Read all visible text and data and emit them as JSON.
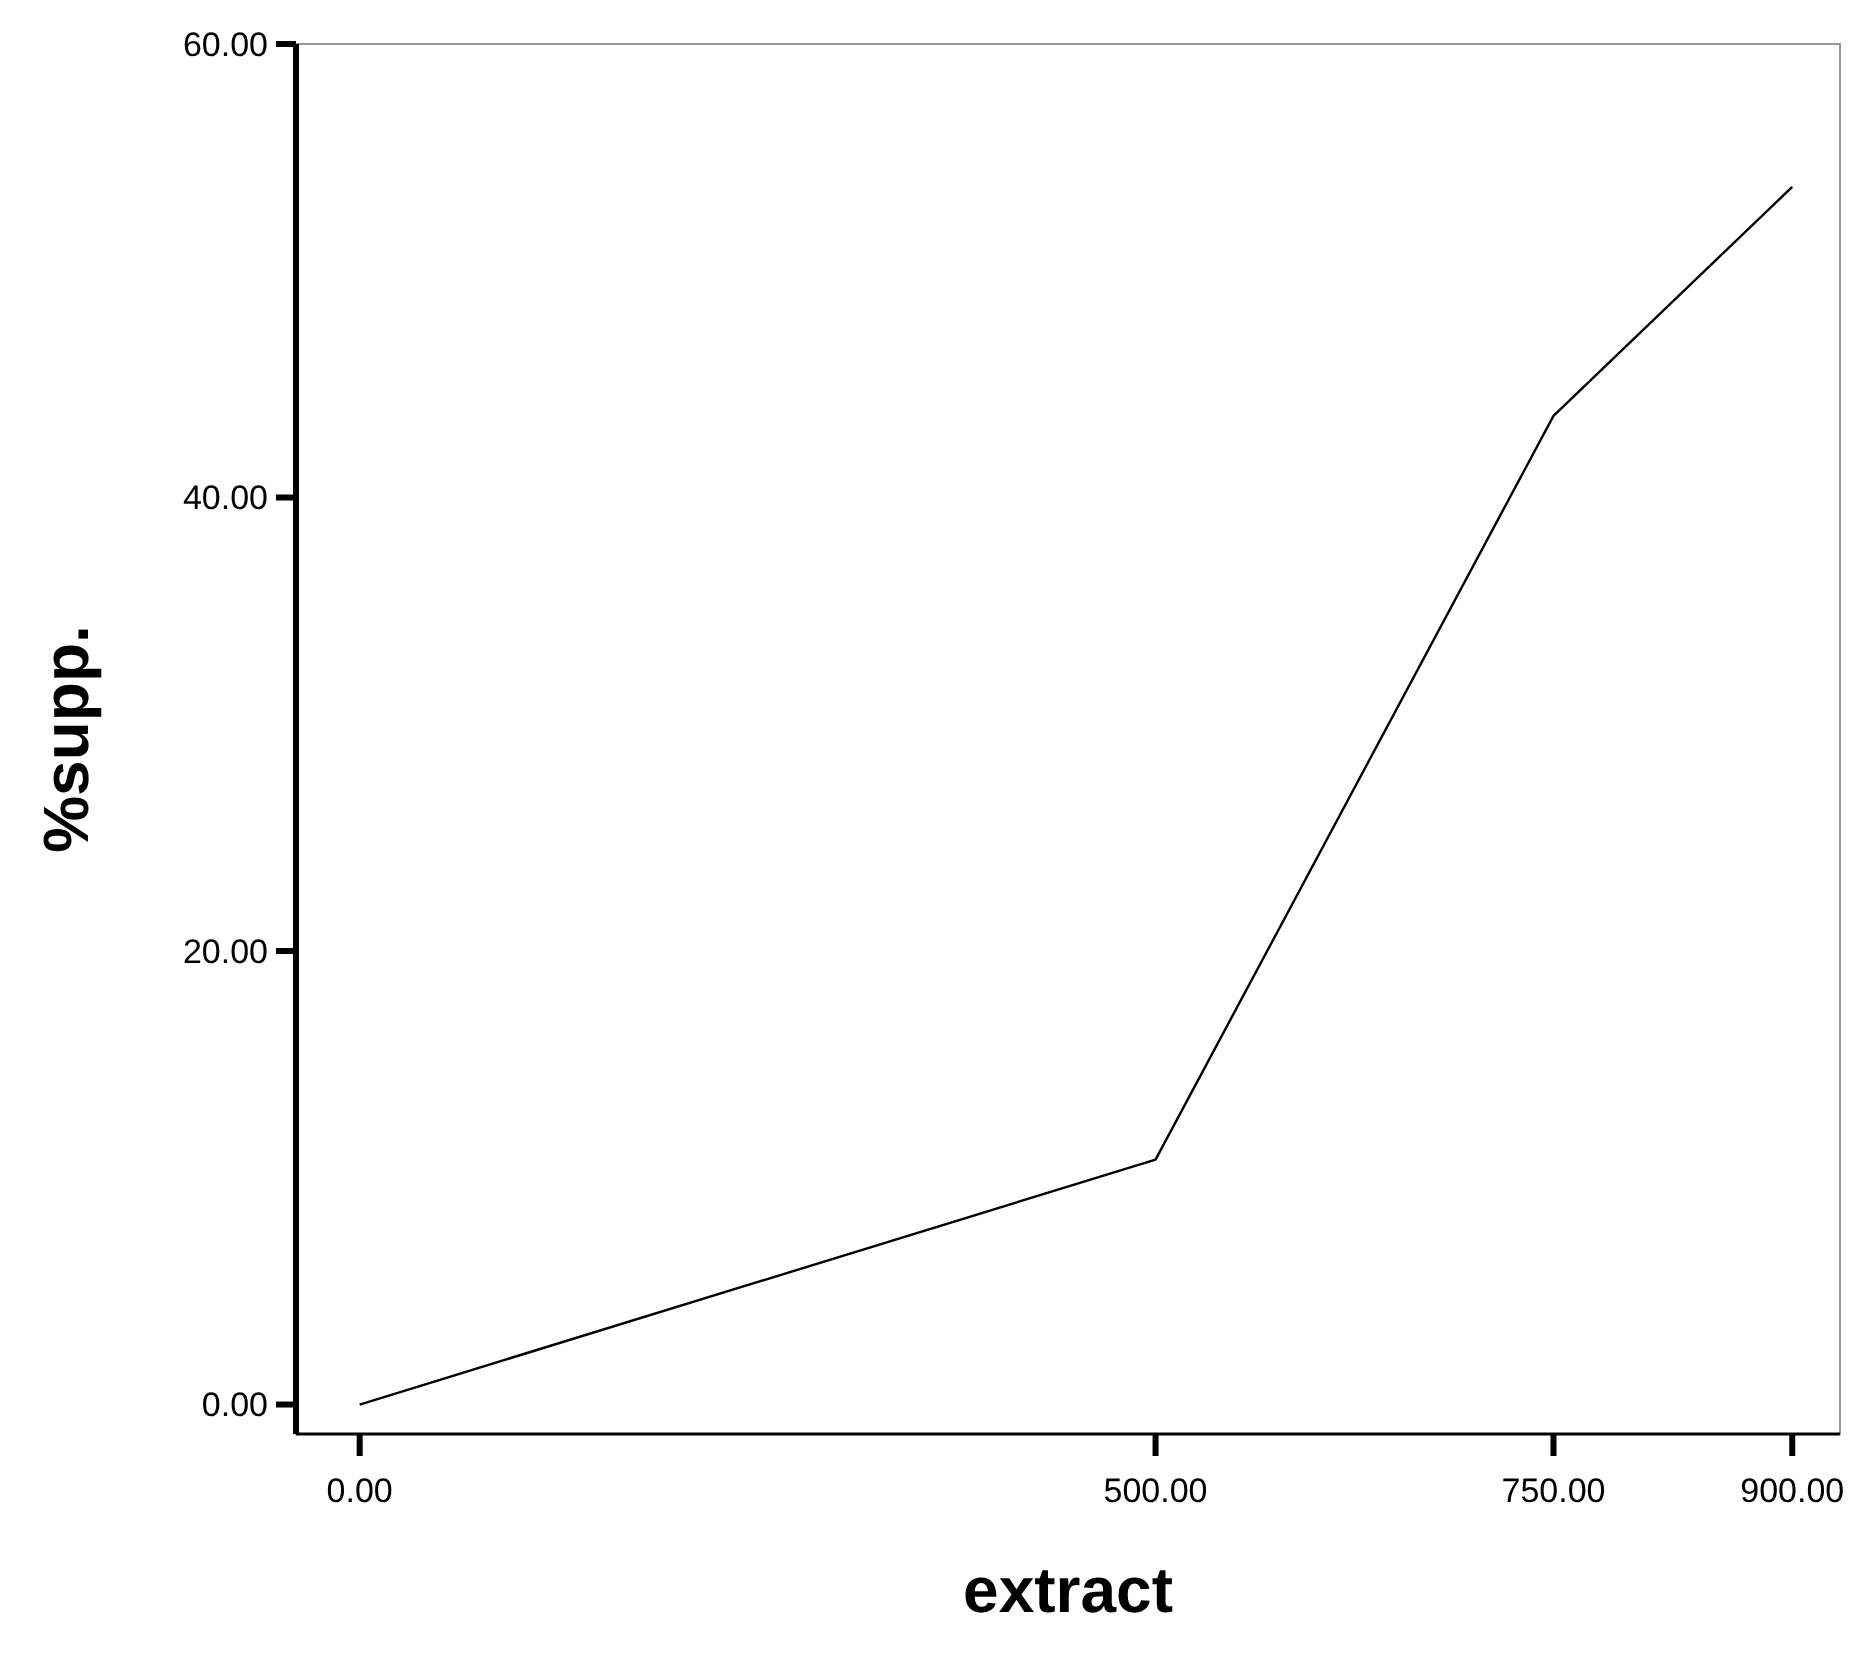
{
  "chart_data": {
    "type": "line",
    "xlabel": "extract",
    "ylabel": "%supp.",
    "x": [
      0,
      500,
      750,
      900
    ],
    "values": [
      0,
      10.8,
      43.6,
      53.7
    ],
    "color": "#000000",
    "xlim": [
      -40,
      930
    ],
    "ylim": [
      -1.3,
      60
    ],
    "xticks": [
      {
        "value": 0,
        "label": "0.00"
      },
      {
        "value": 500,
        "label": "500.00"
      },
      {
        "value": 750,
        "label": "750.00"
      },
      {
        "value": 900,
        "label": "900.00"
      }
    ],
    "yticks": [
      {
        "value": 0,
        "label": "0.00"
      },
      {
        "value": 20,
        "label": "20.00"
      },
      {
        "value": 40,
        "label": "40.00"
      },
      {
        "value": 60,
        "label": "60.00"
      }
    ],
    "grid": false,
    "marker": "none",
    "line_style": "solid"
  }
}
